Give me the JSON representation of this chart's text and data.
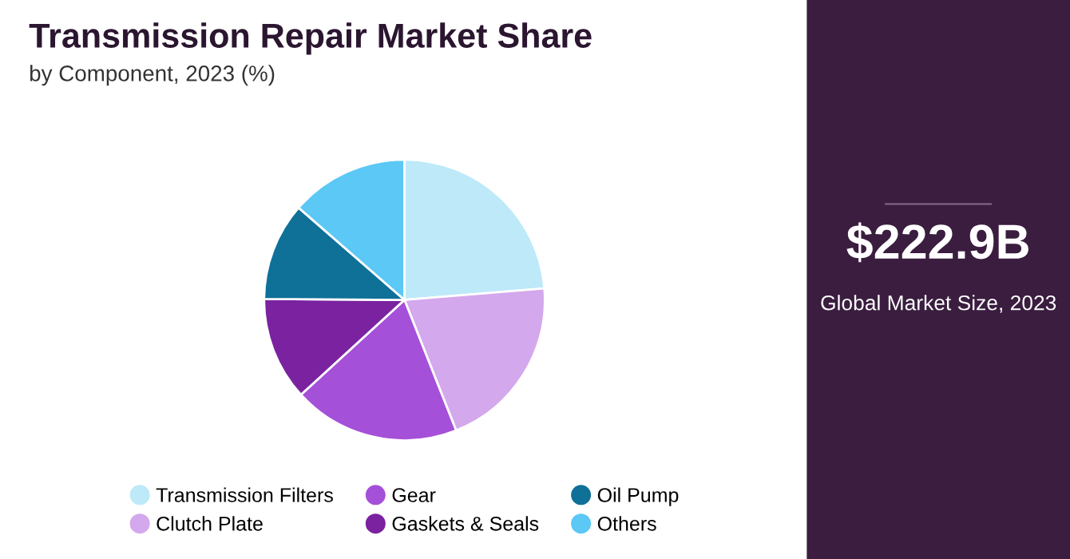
{
  "chart_data": [
    {
      "type": "pie",
      "title": "Transmission Repair Market Share",
      "subtitle": "by Component, 2023 (%)",
      "categories": [
        "Transmission Filters",
        "Clutch Plate",
        "Gear",
        "Gaskets & Seals",
        "Oil Pump",
        "Others"
      ],
      "values": [
        23.7,
        20.3,
        19.2,
        11.9,
        11.3,
        13.6
      ],
      "colors": [
        "#bde9f9",
        "#d4a8ec",
        "#a550d8",
        "#7a22a0",
        "#0f7098",
        "#5bc8f5"
      ],
      "legend": "bottom"
    },
    {
      "type": "other",
      "title": "$222.9B",
      "subtitle": "Global Market Size, 2023"
    }
  ]
}
